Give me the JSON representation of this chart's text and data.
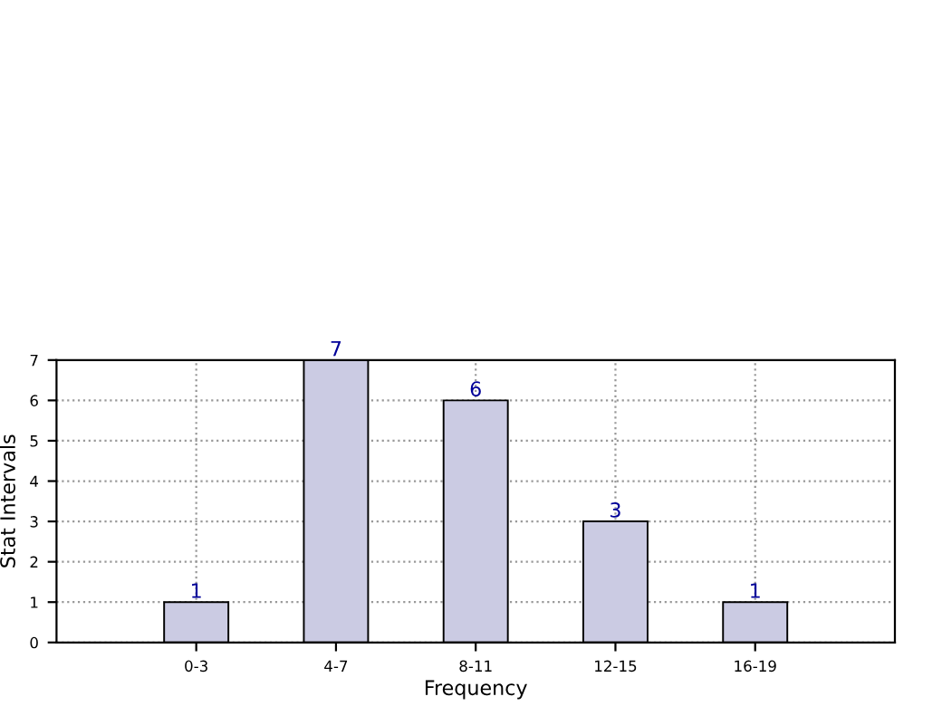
{
  "chart_data": {
    "type": "bar",
    "xlabel": "Frequency",
    "ylabel": "Stat Intervals",
    "categories": [
      "0-3",
      "4-7",
      "8-11",
      "12-15",
      "16-19"
    ],
    "values": [
      1,
      7,
      6,
      3,
      1
    ],
    "color": "#cbcbe3",
    "data_labels": true,
    "ylim": [
      0,
      7
    ],
    "yticks": [
      0,
      1,
      2,
      3,
      4,
      5,
      6,
      7
    ],
    "grid": true
  }
}
